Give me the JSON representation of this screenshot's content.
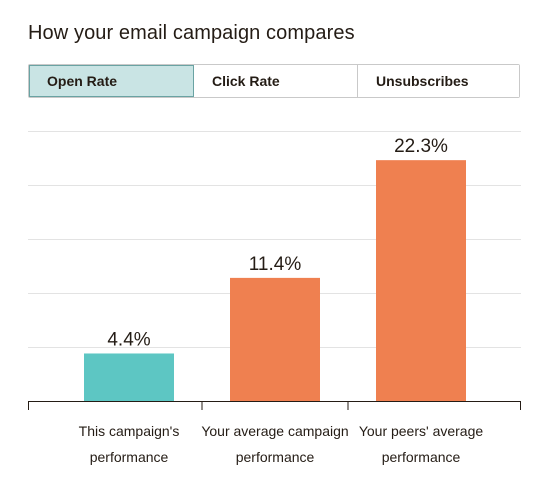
{
  "page": {
    "title": "How your email campaign compares"
  },
  "tabs": [
    {
      "label": "Open Rate",
      "active": true
    },
    {
      "label": "Click Rate",
      "active": false
    },
    {
      "label": "Unsubscribes",
      "active": false
    }
  ],
  "chart_data": {
    "type": "bar",
    "categories": [
      "This campaign's performance",
      "Your average campaign performance",
      "Your peers' average performance"
    ],
    "values": [
      4.4,
      11.4,
      22.3
    ],
    "value_labels": [
      "4.4%",
      "11.4%",
      "22.3%"
    ],
    "colors": [
      "#5dc6c3",
      "#ef8050",
      "#ef8050"
    ],
    "title": "",
    "xlabel": "",
    "ylabel": "",
    "ylim": [
      0,
      25
    ],
    "grid": true,
    "legend": "none"
  }
}
